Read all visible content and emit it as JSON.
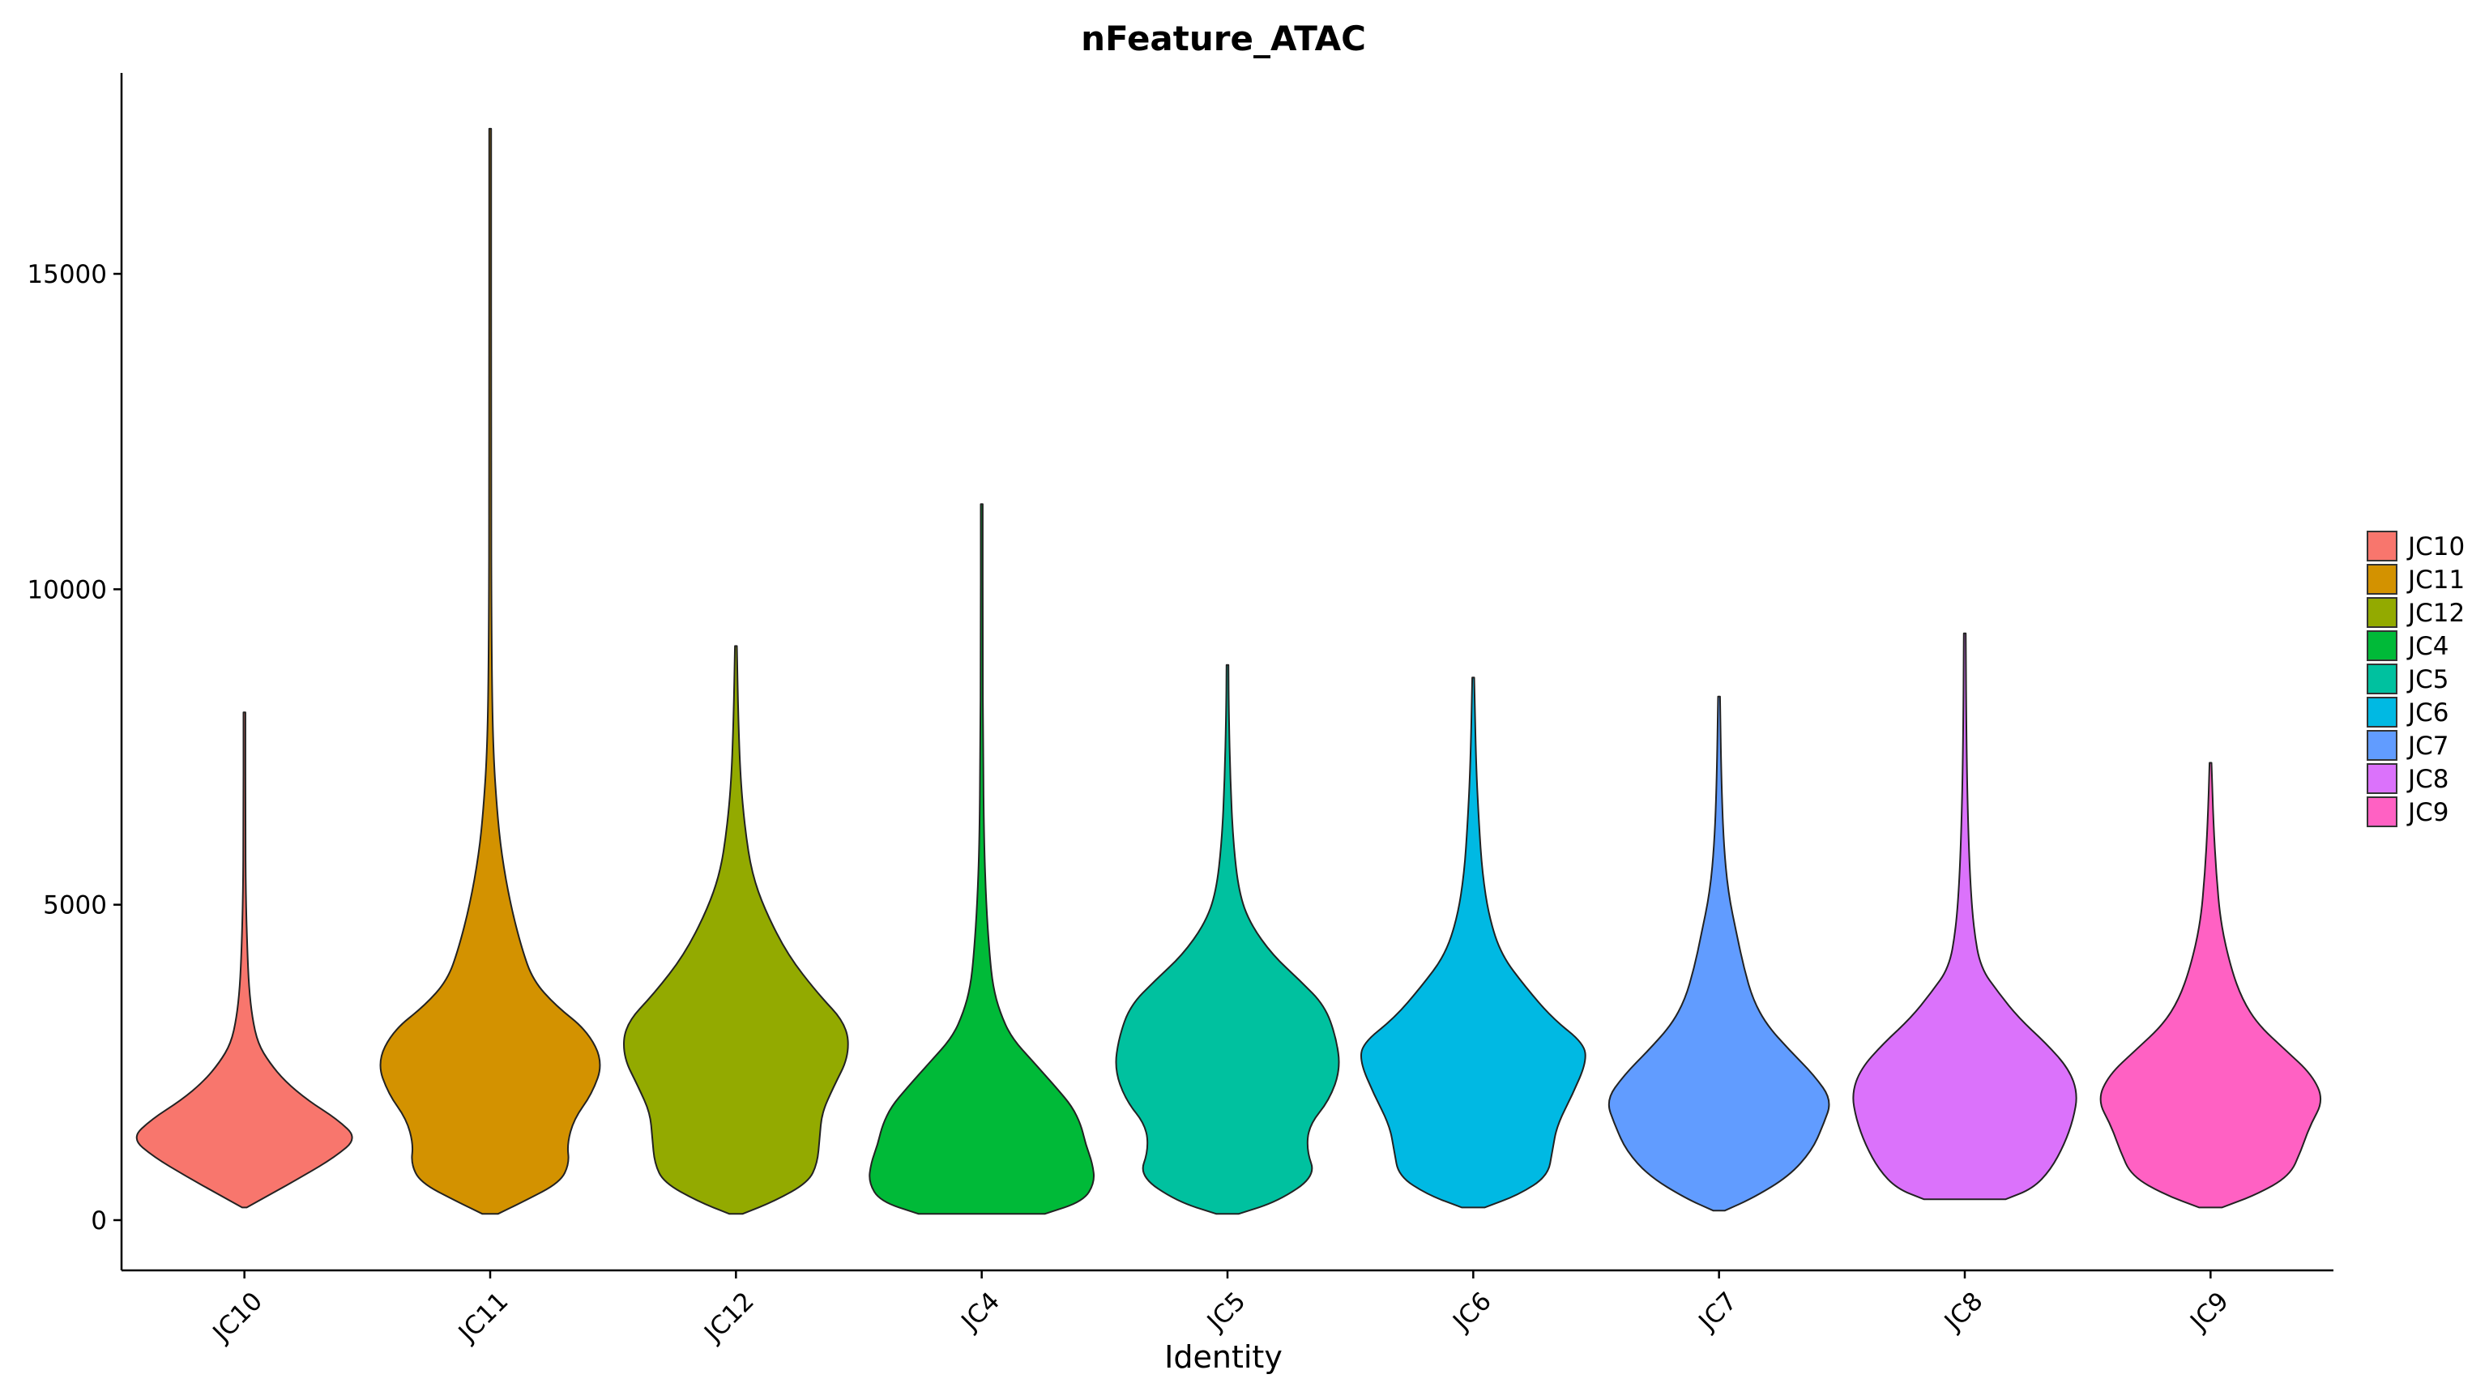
{
  "chart_data": {
    "type": "violin",
    "title": "nFeature_ATAC",
    "xlabel": "Identity",
    "ylabel": "",
    "ylim": [
      -750,
      18200
    ],
    "y_ticks": [
      0,
      5000,
      10000,
      15000
    ],
    "y_tick_labels": [
      "0",
      "5000",
      "10000",
      "15000"
    ],
    "categories": [
      "JC10",
      "JC11",
      "JC12",
      "JC4",
      "JC5",
      "JC6",
      "JC7",
      "JC8",
      "JC9"
    ],
    "legend": {
      "placement": "right",
      "entries": [
        "JC10",
        "JC11",
        "JC12",
        "JC4",
        "JC5",
        "JC6",
        "JC7",
        "JC8",
        "JC9"
      ]
    },
    "grid": false,
    "series": [
      {
        "name": "JC10",
        "color": "#F8766D",
        "min": 200,
        "max": 8050,
        "profile": [
          [
            200,
            0.02
          ],
          [
            400,
            0.22
          ],
          [
            700,
            0.52
          ],
          [
            1000,
            0.8
          ],
          [
            1300,
            1.0
          ],
          [
            1600,
            0.82
          ],
          [
            1900,
            0.56
          ],
          [
            2200,
            0.36
          ],
          [
            2500,
            0.22
          ],
          [
            2800,
            0.12
          ],
          [
            3200,
            0.07
          ],
          [
            3700,
            0.04
          ],
          [
            4300,
            0.025
          ],
          [
            5200,
            0.012
          ],
          [
            6200,
            0.008
          ],
          [
            8050,
            0.004
          ]
        ]
      },
      {
        "name": "JC11",
        "color": "#D39200",
        "min": 100,
        "max": 17300,
        "profile": [
          [
            100,
            0.07
          ],
          [
            300,
            0.3
          ],
          [
            600,
            0.62
          ],
          [
            900,
            0.7
          ],
          [
            1200,
            0.68
          ],
          [
            1600,
            0.74
          ],
          [
            2000,
            0.9
          ],
          [
            2500,
            1.0
          ],
          [
            3000,
            0.86
          ],
          [
            3400,
            0.58
          ],
          [
            3800,
            0.38
          ],
          [
            4300,
            0.28
          ],
          [
            5000,
            0.18
          ],
          [
            5800,
            0.1
          ],
          [
            6500,
            0.06
          ],
          [
            7500,
            0.025
          ],
          [
            9000,
            0.012
          ],
          [
            12000,
            0.008
          ],
          [
            17300,
            0.004
          ]
        ]
      },
      {
        "name": "JC12",
        "color": "#93AA00",
        "min": 100,
        "max": 9100,
        "profile": [
          [
            100,
            0.06
          ],
          [
            300,
            0.34
          ],
          [
            600,
            0.64
          ],
          [
            900,
            0.72
          ],
          [
            1300,
            0.74
          ],
          [
            1700,
            0.76
          ],
          [
            2100,
            0.86
          ],
          [
            2600,
            1.0
          ],
          [
            3100,
            0.98
          ],
          [
            3600,
            0.72
          ],
          [
            4200,
            0.46
          ],
          [
            4900,
            0.26
          ],
          [
            5500,
            0.14
          ],
          [
            6200,
            0.08
          ],
          [
            7000,
            0.04
          ],
          [
            8000,
            0.02
          ],
          [
            9100,
            0.006
          ]
        ]
      },
      {
        "name": "JC4",
        "color": "#00BA38",
        "min": 100,
        "max": 11350,
        "profile": [
          [
            100,
            0.56
          ],
          [
            300,
            0.9
          ],
          [
            600,
            1.0
          ],
          [
            900,
            0.98
          ],
          [
            1200,
            0.92
          ],
          [
            1500,
            0.88
          ],
          [
            1800,
            0.8
          ],
          [
            2100,
            0.66
          ],
          [
            2500,
            0.46
          ],
          [
            2900,
            0.26
          ],
          [
            3300,
            0.16
          ],
          [
            3700,
            0.1
          ],
          [
            4200,
            0.07
          ],
          [
            5000,
            0.04
          ],
          [
            6000,
            0.02
          ],
          [
            7500,
            0.012
          ],
          [
            9000,
            0.008
          ],
          [
            11350,
            0.004
          ]
        ]
      },
      {
        "name": "JC5",
        "color": "#00C19F",
        "min": 100,
        "max": 8800,
        "profile": [
          [
            100,
            0.1
          ],
          [
            300,
            0.45
          ],
          [
            700,
            0.78
          ],
          [
            1100,
            0.7
          ],
          [
            1500,
            0.72
          ],
          [
            1900,
            0.9
          ],
          [
            2400,
            1.0
          ],
          [
            2900,
            0.96
          ],
          [
            3400,
            0.86
          ],
          [
            3800,
            0.64
          ],
          [
            4200,
            0.4
          ],
          [
            4700,
            0.2
          ],
          [
            5200,
            0.1
          ],
          [
            6000,
            0.05
          ],
          [
            7000,
            0.025
          ],
          [
            8000,
            0.012
          ],
          [
            8800,
            0.004
          ]
        ]
      },
      {
        "name": "JC6",
        "color": "#00B9E3",
        "min": 200,
        "max": 8600,
        "profile": [
          [
            200,
            0.1
          ],
          [
            400,
            0.4
          ],
          [
            700,
            0.66
          ],
          [
            1100,
            0.7
          ],
          [
            1500,
            0.74
          ],
          [
            2000,
            0.88
          ],
          [
            2500,
            1.0
          ],
          [
            2800,
            0.98
          ],
          [
            3200,
            0.7
          ],
          [
            3700,
            0.46
          ],
          [
            4200,
            0.25
          ],
          [
            4800,
            0.14
          ],
          [
            5500,
            0.08
          ],
          [
            6300,
            0.05
          ],
          [
            7200,
            0.025
          ],
          [
            8600,
            0.006
          ]
        ]
      },
      {
        "name": "JC7",
        "color": "#619CFF",
        "min": 150,
        "max": 8300,
        "profile": [
          [
            150,
            0.05
          ],
          [
            350,
            0.3
          ],
          [
            700,
            0.62
          ],
          [
            1100,
            0.82
          ],
          [
            1500,
            0.92
          ],
          [
            1900,
            1.0
          ],
          [
            2300,
            0.84
          ],
          [
            2700,
            0.62
          ],
          [
            3100,
            0.42
          ],
          [
            3500,
            0.3
          ],
          [
            4000,
            0.22
          ],
          [
            4500,
            0.16
          ],
          [
            5200,
            0.08
          ],
          [
            6000,
            0.04
          ],
          [
            7000,
            0.02
          ],
          [
            8300,
            0.005
          ]
        ]
      },
      {
        "name": "JC8",
        "color": "#DB72FB",
        "min": 330,
        "max": 9300,
        "profile": [
          [
            330,
            0.36
          ],
          [
            500,
            0.6
          ],
          [
            800,
            0.76
          ],
          [
            1200,
            0.88
          ],
          [
            1600,
            0.96
          ],
          [
            2000,
            1.0
          ],
          [
            2400,
            0.92
          ],
          [
            2800,
            0.72
          ],
          [
            3200,
            0.48
          ],
          [
            3600,
            0.3
          ],
          [
            4000,
            0.14
          ],
          [
            4600,
            0.08
          ],
          [
            5300,
            0.05
          ],
          [
            6200,
            0.03
          ],
          [
            7500,
            0.015
          ],
          [
            9300,
            0.004
          ]
        ]
      },
      {
        "name": "JC9",
        "color": "#FF61C3",
        "min": 200,
        "max": 7250,
        "profile": [
          [
            200,
            0.1
          ],
          [
            400,
            0.4
          ],
          [
            700,
            0.7
          ],
          [
            1100,
            0.8
          ],
          [
            1500,
            0.88
          ],
          [
            1900,
            1.0
          ],
          [
            2300,
            0.9
          ],
          [
            2700,
            0.66
          ],
          [
            3100,
            0.42
          ],
          [
            3500,
            0.28
          ],
          [
            4000,
            0.18
          ],
          [
            4700,
            0.09
          ],
          [
            5500,
            0.05
          ],
          [
            6300,
            0.025
          ],
          [
            7250,
            0.005
          ]
        ]
      }
    ]
  }
}
